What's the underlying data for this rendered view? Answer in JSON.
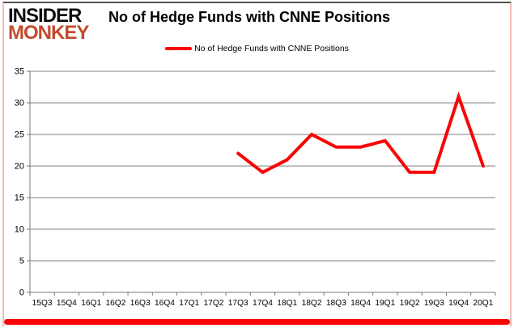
{
  "logo": {
    "line1": "INSIDER",
    "line2": "MONKEY"
  },
  "header": {
    "title": "No of Hedge Funds with CNNE Positions"
  },
  "legend": {
    "label": "No of Hedge Funds with CNNE Positions",
    "swatch_color": "#f90505"
  },
  "colors": {
    "line": "#f90505",
    "grid": "#808080",
    "axis": "#7a7a7a",
    "tick": "#7a7a7a",
    "label": "#000000",
    "logo_insider": "#0d0d0d",
    "logo_monkey": "#c24b2e",
    "bottom_bar": "#f90505",
    "frame_top": "#4f4f4f",
    "frame_side": "#f2beb4"
  },
  "chart_data": {
    "type": "line",
    "title": "No of Hedge Funds with CNNE Positions",
    "categories": [
      "15Q3",
      "15Q4",
      "16Q1",
      "16Q2",
      "16Q3",
      "16Q4",
      "17Q1",
      "17Q2",
      "17Q3",
      "17Q4",
      "18Q1",
      "18Q2",
      "18Q3",
      "18Q4",
      "19Q1",
      "19Q2",
      "19Q3",
      "19Q4",
      "20Q1"
    ],
    "series": [
      {
        "name": "No of Hedge Funds with CNNE Positions",
        "color": "#f90505",
        "values": [
          null,
          null,
          null,
          null,
          null,
          null,
          null,
          null,
          22,
          19,
          21,
          25,
          23,
          23,
          24,
          19,
          19,
          31,
          20
        ]
      }
    ],
    "xlabel": "",
    "ylabel": "",
    "ylim": [
      0,
      35
    ],
    "yticks": [
      0,
      5,
      10,
      15,
      20,
      25,
      30,
      35
    ],
    "grid": true,
    "legend_position": "top-center"
  }
}
